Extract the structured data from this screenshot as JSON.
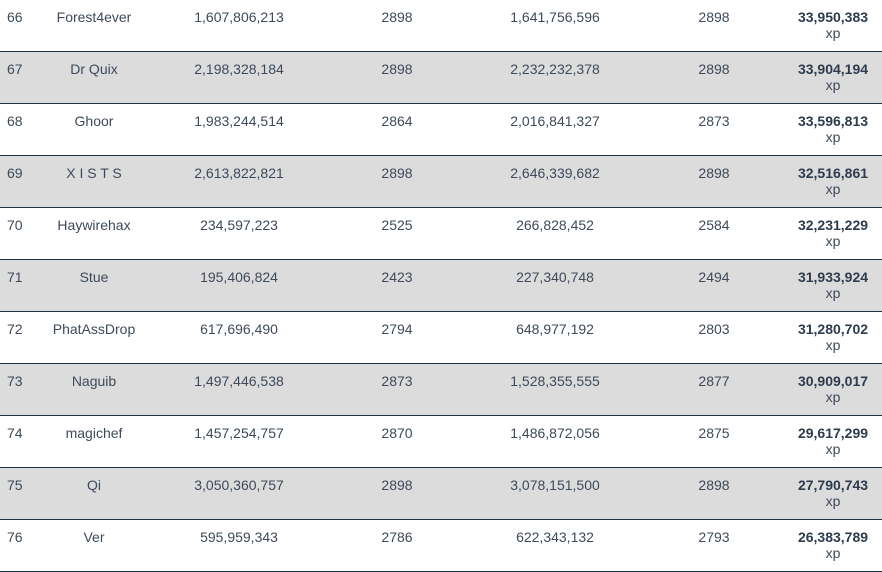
{
  "rows": [
    {
      "rank": "66",
      "name": "Forest4ever",
      "value1": "1,607,806,213",
      "level1": "2898",
      "value2": "1,641,756,596",
      "level2": "2898",
      "xp": "33,950,383",
      "unit": "xp"
    },
    {
      "rank": "67",
      "name": "Dr Quix",
      "value1": "2,198,328,184",
      "level1": "2898",
      "value2": "2,232,232,378",
      "level2": "2898",
      "xp": "33,904,194",
      "unit": "xp"
    },
    {
      "rank": "68",
      "name": "Ghoor",
      "value1": "1,983,244,514",
      "level1": "2864",
      "value2": "2,016,841,327",
      "level2": "2873",
      "xp": "33,596,813",
      "unit": "xp"
    },
    {
      "rank": "69",
      "name": "X I S T S",
      "value1": "2,613,822,821",
      "level1": "2898",
      "value2": "2,646,339,682",
      "level2": "2898",
      "xp": "32,516,861",
      "unit": "xp"
    },
    {
      "rank": "70",
      "name": "Haywirehax",
      "value1": "234,597,223",
      "level1": "2525",
      "value2": "266,828,452",
      "level2": "2584",
      "xp": "32,231,229",
      "unit": "xp"
    },
    {
      "rank": "71",
      "name": "Stue",
      "value1": "195,406,824",
      "level1": "2423",
      "value2": "227,340,748",
      "level2": "2494",
      "xp": "31,933,924",
      "unit": "xp"
    },
    {
      "rank": "72",
      "name": "PhatAssDrop",
      "value1": "617,696,490",
      "level1": "2794",
      "value2": "648,977,192",
      "level2": "2803",
      "xp": "31,280,702",
      "unit": "xp"
    },
    {
      "rank": "73",
      "name": "Naguib",
      "value1": "1,497,446,538",
      "level1": "2873",
      "value2": "1,528,355,555",
      "level2": "2877",
      "xp": "30,909,017",
      "unit": "xp"
    },
    {
      "rank": "74",
      "name": "magichef",
      "value1": "1,457,254,757",
      "level1": "2870",
      "value2": "1,486,872,056",
      "level2": "2875",
      "xp": "29,617,299",
      "unit": "xp"
    },
    {
      "rank": "75",
      "name": "Qi",
      "value1": "3,050,360,757",
      "level1": "2898",
      "value2": "3,078,151,500",
      "level2": "2898",
      "xp": "27,790,743",
      "unit": "xp"
    },
    {
      "rank": "76",
      "name": "Ver",
      "value1": "595,959,343",
      "level1": "2786",
      "value2": "622,343,132",
      "level2": "2793",
      "xp": "26,383,789",
      "unit": "xp"
    }
  ],
  "colors": {
    "alt_row_bg": "#dcdcdc",
    "divider": "#1f3347",
    "text": "#3e4a5a"
  }
}
